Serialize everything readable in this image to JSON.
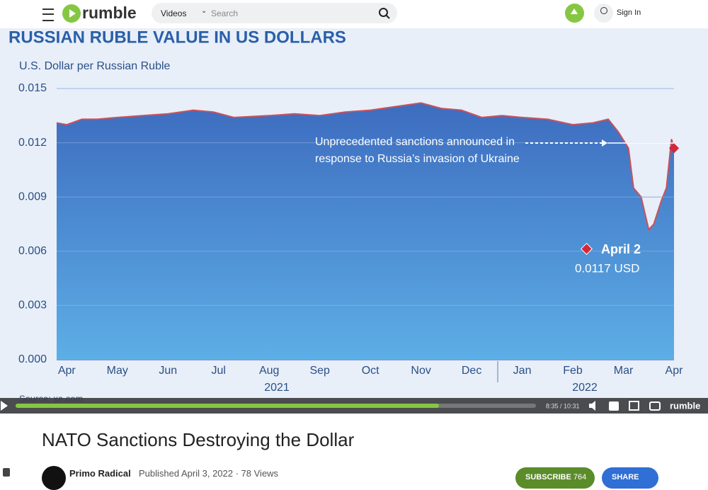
{
  "header": {
    "logo": "rumble",
    "search_scope": "Videos",
    "search_placeholder": "Search",
    "sign_in": "Sign In"
  },
  "video": {
    "chart": {
      "type": "area",
      "title": "RUSSIAN RUBLE VALUE IN US DOLLARS",
      "y_label": "U.S. Dollar per Russian Ruble",
      "source": "Source: xe.com",
      "color": "#c9525c",
      "x": [
        -0.2,
        0,
        0.3,
        0.6,
        1,
        1.5,
        2,
        2.5,
        2.9,
        3.3,
        4,
        4.5,
        5,
        5.5,
        6,
        6.5,
        7,
        7.4,
        7.8,
        8.2,
        8.6,
        9,
        9.5,
        10,
        10.4,
        10.7,
        10.9,
        11.1,
        11.2,
        11.35,
        11.5,
        11.6,
        11.75,
        11.85,
        11.95,
        12
      ],
      "values": [
        0.0131,
        0.013,
        0.0133,
        0.0133,
        0.0134,
        0.0135,
        0.0136,
        0.0138,
        0.0137,
        0.0134,
        0.0135,
        0.0136,
        0.0135,
        0.0137,
        0.0138,
        0.014,
        0.0142,
        0.0139,
        0.0138,
        0.0134,
        0.0135,
        0.0134,
        0.0133,
        0.013,
        0.0131,
        0.0133,
        0.0126,
        0.0117,
        0.0095,
        0.009,
        0.0072,
        0.0075,
        0.0088,
        0.0095,
        0.0122,
        0.0117
      ],
      "xlim": [
        -0.2,
        12
      ],
      "xticks": [
        {
          "value": 0,
          "label": "Apr"
        },
        {
          "value": 1,
          "label": "May"
        },
        {
          "value": 2,
          "label": "Jun"
        },
        {
          "value": 3,
          "label": "Jul"
        },
        {
          "value": 4,
          "label": "Aug"
        },
        {
          "value": 5,
          "label": "Sep"
        },
        {
          "value": 6,
          "label": "Oct"
        },
        {
          "value": 7,
          "label": "Nov"
        },
        {
          "value": 8,
          "label": "Dec"
        },
        {
          "value": 9,
          "label": "Jan"
        },
        {
          "value": 10,
          "label": "Feb"
        },
        {
          "value": 11,
          "label": "Mar"
        },
        {
          "value": 12,
          "label": "Apr"
        }
      ],
      "years": [
        "2021",
        "2022"
      ],
      "ylim": [
        0,
        0.015
      ],
      "yticks": [
        {
          "value": 0,
          "label": "0.000"
        },
        0.003,
        0.006,
        0.009,
        0.012,
        0.015
      ],
      "grid": true,
      "annotations": [
        "Unprecedented sanctions announced in",
        "response to Russia’s invasion of Ukraine"
      ],
      "callout": {
        "label": "April 2",
        "value_label": "0.0117 USD"
      }
    },
    "player": {
      "time": "8:35 / 10:31",
      "brand": "rumble"
    }
  },
  "info": {
    "title": "NATO Sanctions Destroying the Dollar",
    "channel": "Primo Radical",
    "published": "Published April 3, 2022",
    "views": "78 Views",
    "subscribe": "SUBSCRIBE",
    "subscribers": "764",
    "share": "SHARE"
  }
}
